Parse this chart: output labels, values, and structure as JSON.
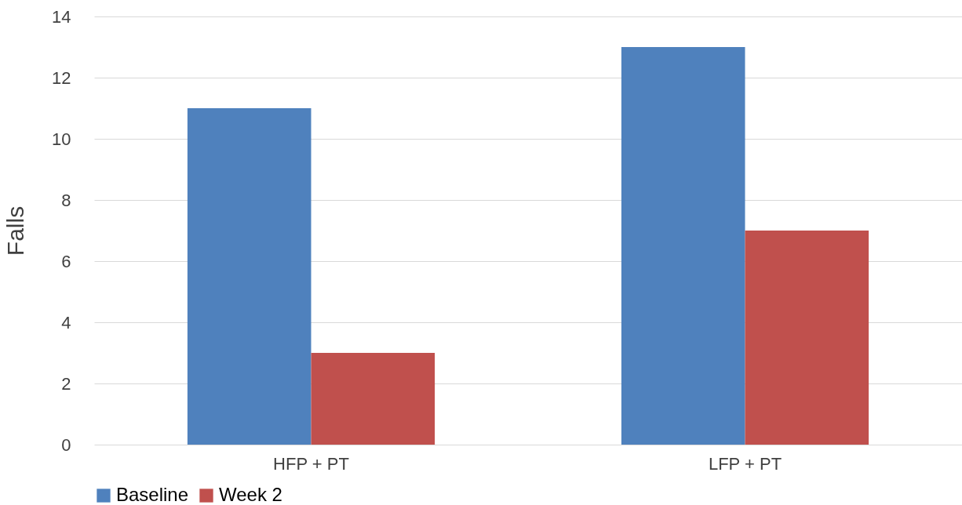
{
  "chart_data": {
    "type": "bar",
    "ylabel": "Falls",
    "categories": [
      "HFP + PT",
      "LFP + PT"
    ],
    "series": [
      {
        "name": "Baseline",
        "color": "#4f81bd",
        "values": [
          11,
          13
        ]
      },
      {
        "name": "Week 2",
        "color": "#c0504d",
        "values": [
          3,
          7
        ]
      }
    ],
    "ylim": [
      0,
      14
    ],
    "yticks": [
      0,
      2,
      4,
      6,
      8,
      10,
      12,
      14
    ],
    "grid": "y",
    "legend": "bottom"
  }
}
